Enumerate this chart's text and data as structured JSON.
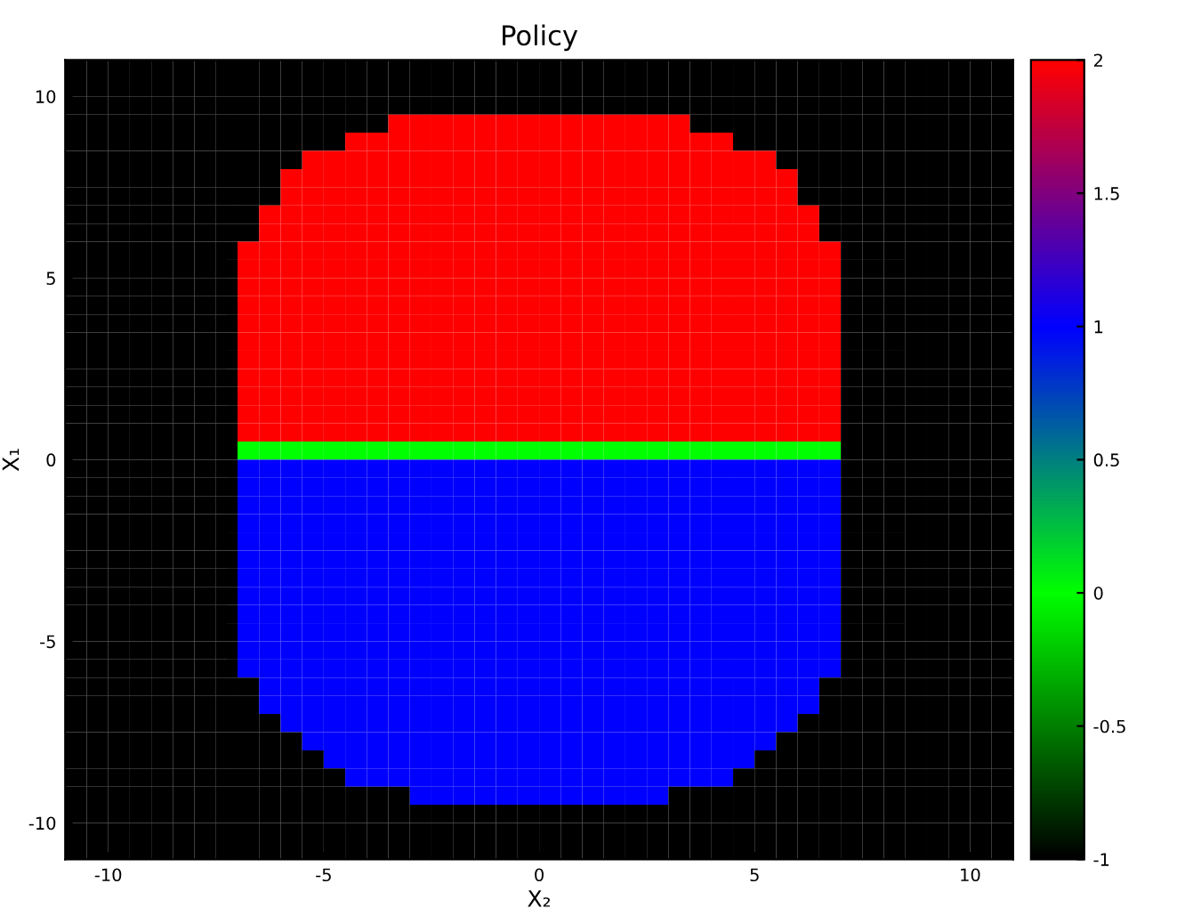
{
  "chart_data": {
    "type": "heatmap",
    "title": "Policy",
    "xlabel": "X₂",
    "ylabel": "X₁",
    "xlim": [
      -11,
      11
    ],
    "ylim": [
      -11,
      11
    ],
    "xticks": [
      -10,
      -5,
      0,
      5,
      10
    ],
    "yticks": [
      -10,
      -5,
      0,
      5,
      10
    ],
    "clim": [
      -1,
      2
    ],
    "cticks": [
      -1,
      -0.5,
      0,
      0.5,
      1,
      1.5,
      2
    ],
    "colors": [
      "#000000",
      "#00ff00",
      "#0000ff",
      "#ff0000"
    ],
    "x": [
      -10.75,
      -10.25,
      -9.75,
      -9.25,
      -8.75,
      -8.25,
      -7.75,
      -7.25,
      -6.75,
      -6.25,
      -5.75,
      -5.25,
      -4.75,
      -4.25,
      -3.75,
      -3.25,
      -2.75,
      -2.25,
      -1.75,
      -1.25,
      -0.75,
      -0.25,
      0.25,
      0.75,
      1.25,
      1.75,
      2.25,
      2.75,
      3.25,
      3.75,
      4.25,
      4.75,
      5.25,
      5.75,
      6.25,
      6.75,
      7.25,
      7.75,
      8.25,
      8.75,
      9.25,
      9.75,
      10.25,
      10.75
    ],
    "y": [
      10.75,
      10.25,
      9.75,
      9.25,
      8.75,
      8.25,
      7.75,
      7.25,
      6.75,
      6.25,
      5.75,
      5.25,
      4.75,
      4.25,
      3.75,
      3.25,
      2.75,
      2.25,
      1.75,
      1.25,
      0.75,
      0.25,
      -0.25,
      -0.75,
      -1.25,
      -1.75,
      -2.25,
      -2.75,
      -3.25,
      -3.75,
      -4.25,
      -4.75,
      -5.25,
      -5.75,
      -6.25,
      -6.75,
      -7.25,
      -7.75,
      -8.25,
      -8.75,
      -9.25,
      -9.75,
      -10.25,
      -10.75
    ],
    "cells": [
      [
        -1,
        -1,
        -1,
        -1,
        -1,
        -1,
        -1,
        -1,
        -1,
        -1,
        -1,
        -1,
        -1,
        -1,
        -1,
        -1,
        -1,
        -1,
        -1,
        -1,
        -1,
        -1,
        -1,
        -1,
        -1,
        -1,
        -1,
        -1,
        -1,
        -1,
        -1,
        -1,
        -1,
        -1,
        -1,
        -1,
        -1,
        -1,
        -1,
        -1,
        -1,
        -1,
        -1,
        -1
      ],
      [
        -1,
        -1,
        -1,
        -1,
        -1,
        -1,
        -1,
        -1,
        -1,
        -1,
        -1,
        -1,
        -1,
        -1,
        -1,
        -1,
        -1,
        -1,
        -1,
        -1,
        -1,
        -1,
        -1,
        -1,
        -1,
        -1,
        -1,
        -1,
        -1,
        -1,
        -1,
        -1,
        -1,
        -1,
        -1,
        -1,
        -1,
        -1,
        -1,
        -1,
        -1,
        -1,
        -1,
        -1
      ],
      [
        -1,
        -1,
        -1,
        -1,
        -1,
        -1,
        -1,
        -1,
        -1,
        -1,
        -1,
        -1,
        -1,
        -1,
        -1,
        -1,
        -1,
        -1,
        -1,
        -1,
        -1,
        -1,
        -1,
        -1,
        -1,
        -1,
        -1,
        -1,
        -1,
        -1,
        -1,
        -1,
        -1,
        -1,
        -1,
        -1,
        -1,
        -1,
        -1,
        -1,
        -1,
        -1,
        -1,
        -1
      ],
      [
        -1,
        -1,
        -1,
        -1,
        -1,
        -1,
        -1,
        -1,
        -1,
        -1,
        -1,
        -1,
        -1,
        -1,
        -1,
        2,
        2,
        2,
        2,
        2,
        2,
        2,
        2,
        2,
        2,
        2,
        2,
        2,
        2,
        -1,
        -1,
        -1,
        -1,
        -1,
        -1,
        -1,
        -1,
        -1,
        -1,
        -1,
        -1,
        -1,
        -1,
        -1
      ],
      [
        -1,
        -1,
        -1,
        -1,
        -1,
        -1,
        -1,
        -1,
        -1,
        -1,
        -1,
        -1,
        -1,
        2,
        2,
        2,
        2,
        2,
        2,
        2,
        2,
        2,
        2,
        2,
        2,
        2,
        2,
        2,
        2,
        2,
        2,
        -1,
        -1,
        -1,
        -1,
        -1,
        -1,
        -1,
        -1,
        -1,
        -1,
        -1,
        -1,
        -1
      ],
      [
        -1,
        -1,
        -1,
        -1,
        -1,
        -1,
        -1,
        -1,
        -1,
        -1,
        -1,
        2,
        2,
        2,
        2,
        2,
        2,
        2,
        2,
        2,
        2,
        2,
        2,
        2,
        2,
        2,
        2,
        2,
        2,
        2,
        2,
        2,
        2,
        -1,
        -1,
        -1,
        -1,
        -1,
        -1,
        -1,
        -1,
        -1,
        -1,
        -1
      ],
      [
        -1,
        -1,
        -1,
        -1,
        -1,
        -1,
        -1,
        -1,
        -1,
        -1,
        2,
        2,
        2,
        2,
        2,
        2,
        2,
        2,
        2,
        2,
        2,
        2,
        2,
        2,
        2,
        2,
        2,
        2,
        2,
        2,
        2,
        2,
        2,
        2,
        -1,
        -1,
        -1,
        -1,
        -1,
        -1,
        -1,
        -1,
        -1,
        -1
      ],
      [
        -1,
        -1,
        -1,
        -1,
        -1,
        -1,
        -1,
        -1,
        -1,
        -1,
        2,
        2,
        2,
        2,
        2,
        2,
        2,
        2,
        2,
        2,
        2,
        2,
        2,
        2,
        2,
        2,
        2,
        2,
        2,
        2,
        2,
        2,
        2,
        2,
        -1,
        -1,
        -1,
        -1,
        -1,
        -1,
        -1,
        -1,
        -1,
        -1
      ],
      [
        -1,
        -1,
        -1,
        -1,
        -1,
        -1,
        -1,
        -1,
        -1,
        2,
        2,
        2,
        2,
        2,
        2,
        2,
        2,
        2,
        2,
        2,
        2,
        2,
        2,
        2,
        2,
        2,
        2,
        2,
        2,
        2,
        2,
        2,
        2,
        2,
        2,
        -1,
        -1,
        -1,
        -1,
        -1,
        -1,
        -1,
        -1,
        -1
      ],
      [
        -1,
        -1,
        -1,
        -1,
        -1,
        -1,
        -1,
        -1,
        -1,
        2,
        2,
        2,
        2,
        2,
        2,
        2,
        2,
        2,
        2,
        2,
        2,
        2,
        2,
        2,
        2,
        2,
        2,
        2,
        2,
        2,
        2,
        2,
        2,
        2,
        2,
        -1,
        -1,
        -1,
        -1,
        -1,
        -1,
        -1,
        -1,
        -1
      ],
      [
        -1,
        -1,
        -1,
        -1,
        -1,
        -1,
        -1,
        -1,
        2,
        2,
        2,
        2,
        2,
        2,
        2,
        2,
        2,
        2,
        2,
        2,
        2,
        2,
        2,
        2,
        2,
        2,
        2,
        2,
        2,
        2,
        2,
        2,
        2,
        2,
        2,
        2,
        -1,
        -1,
        -1,
        -1,
        -1,
        -1,
        -1,
        -1
      ],
      [
        -1,
        -1,
        -1,
        -1,
        -1,
        -1,
        -1,
        -1,
        2,
        2,
        2,
        2,
        2,
        2,
        2,
        2,
        2,
        2,
        2,
        2,
        2,
        2,
        2,
        2,
        2,
        2,
        2,
        2,
        2,
        2,
        2,
        2,
        2,
        2,
        2,
        2,
        -1,
        -1,
        -1,
        -1,
        -1,
        -1,
        -1,
        -1
      ],
      [
        -1,
        -1,
        -1,
        -1,
        -1,
        -1,
        -1,
        -1,
        2,
        2,
        2,
        2,
        2,
        2,
        2,
        2,
        2,
        2,
        2,
        2,
        2,
        2,
        2,
        2,
        2,
        2,
        2,
        2,
        2,
        2,
        2,
        2,
        2,
        2,
        2,
        2,
        -1,
        -1,
        -1,
        -1,
        -1,
        -1,
        -1,
        -1
      ],
      [
        -1,
        -1,
        -1,
        -1,
        -1,
        -1,
        -1,
        -1,
        2,
        2,
        2,
        2,
        2,
        2,
        2,
        2,
        2,
        2,
        2,
        2,
        2,
        2,
        2,
        2,
        2,
        2,
        2,
        2,
        2,
        2,
        2,
        2,
        2,
        2,
        2,
        2,
        -1,
        -1,
        -1,
        -1,
        -1,
        -1,
        -1,
        -1
      ],
      [
        -1,
        -1,
        -1,
        -1,
        -1,
        -1,
        -1,
        -1,
        2,
        2,
        2,
        2,
        2,
        2,
        2,
        2,
        2,
        2,
        2,
        2,
        2,
        2,
        2,
        2,
        2,
        2,
        2,
        2,
        2,
        2,
        2,
        2,
        2,
        2,
        2,
        2,
        -1,
        -1,
        -1,
        -1,
        -1,
        -1,
        -1,
        -1
      ],
      [
        -1,
        -1,
        -1,
        -1,
        -1,
        -1,
        -1,
        -1,
        2,
        2,
        2,
        2,
        2,
        2,
        2,
        2,
        2,
        2,
        2,
        2,
        2,
        2,
        2,
        2,
        2,
        2,
        2,
        2,
        2,
        2,
        2,
        2,
        2,
        2,
        2,
        2,
        -1,
        -1,
        -1,
        -1,
        -1,
        -1,
        -1,
        -1
      ],
      [
        -1,
        -1,
        -1,
        -1,
        -1,
        -1,
        -1,
        -1,
        2,
        2,
        2,
        2,
        2,
        2,
        2,
        2,
        2,
        2,
        2,
        2,
        2,
        2,
        2,
        2,
        2,
        2,
        2,
        2,
        2,
        2,
        2,
        2,
        2,
        2,
        2,
        2,
        -1,
        -1,
        -1,
        -1,
        -1,
        -1,
        -1,
        -1
      ],
      [
        -1,
        -1,
        -1,
        -1,
        -1,
        -1,
        -1,
        -1,
        2,
        2,
        2,
        2,
        2,
        2,
        2,
        2,
        2,
        2,
        2,
        2,
        2,
        2,
        2,
        2,
        2,
        2,
        2,
        2,
        2,
        2,
        2,
        2,
        2,
        2,
        2,
        2,
        -1,
        -1,
        -1,
        -1,
        -1,
        -1,
        -1,
        -1
      ],
      [
        -1,
        -1,
        -1,
        -1,
        -1,
        -1,
        -1,
        -1,
        2,
        2,
        2,
        2,
        2,
        2,
        2,
        2,
        2,
        2,
        2,
        2,
        2,
        2,
        2,
        2,
        2,
        2,
        2,
        2,
        2,
        2,
        2,
        2,
        2,
        2,
        2,
        2,
        -1,
        -1,
        -1,
        -1,
        -1,
        -1,
        -1,
        -1
      ],
      [
        -1,
        -1,
        -1,
        -1,
        -1,
        -1,
        -1,
        -1,
        2,
        2,
        2,
        2,
        2,
        2,
        2,
        2,
        2,
        2,
        2,
        2,
        2,
        2,
        2,
        2,
        2,
        2,
        2,
        2,
        2,
        2,
        2,
        2,
        2,
        2,
        2,
        2,
        -1,
        -1,
        -1,
        -1,
        -1,
        -1,
        -1,
        -1
      ],
      [
        -1,
        -1,
        -1,
        -1,
        -1,
        -1,
        -1,
        -1,
        2,
        2,
        2,
        2,
        2,
        2,
        2,
        2,
        2,
        2,
        2,
        2,
        2,
        2,
        2,
        2,
        2,
        2,
        2,
        2,
        2,
        2,
        2,
        2,
        2,
        2,
        2,
        2,
        -1,
        -1,
        -1,
        -1,
        -1,
        -1,
        -1,
        -1
      ],
      [
        -1,
        -1,
        -1,
        -1,
        -1,
        -1,
        -1,
        -1,
        0,
        0,
        0,
        0,
        0,
        0,
        0,
        0,
        0,
        0,
        0,
        0,
        0,
        0,
        0,
        0,
        0,
        0,
        0,
        0,
        0,
        0,
        0,
        0,
        0,
        0,
        0,
        0,
        -1,
        -1,
        -1,
        -1,
        -1,
        -1,
        -1,
        -1
      ],
      [
        -1,
        -1,
        -1,
        -1,
        -1,
        -1,
        -1,
        -1,
        1,
        1,
        1,
        1,
        1,
        1,
        1,
        1,
        1,
        1,
        1,
        1,
        1,
        1,
        1,
        1,
        1,
        1,
        1,
        1,
        1,
        1,
        1,
        1,
        1,
        1,
        1,
        1,
        -1,
        -1,
        -1,
        -1,
        -1,
        -1,
        -1,
        -1
      ],
      [
        -1,
        -1,
        -1,
        -1,
        -1,
        -1,
        -1,
        -1,
        1,
        1,
        1,
        1,
        1,
        1,
        1,
        1,
        1,
        1,
        1,
        1,
        1,
        1,
        1,
        1,
        1,
        1,
        1,
        1,
        1,
        1,
        1,
        1,
        1,
        1,
        1,
        1,
        -1,
        -1,
        -1,
        -1,
        -1,
        -1,
        -1,
        -1
      ],
      [
        -1,
        -1,
        -1,
        -1,
        -1,
        -1,
        -1,
        -1,
        1,
        1,
        1,
        1,
        1,
        1,
        1,
        1,
        1,
        1,
        1,
        1,
        1,
        1,
        1,
        1,
        1,
        1,
        1,
        1,
        1,
        1,
        1,
        1,
        1,
        1,
        1,
        1,
        -1,
        -1,
        -1,
        -1,
        -1,
        -1,
        -1,
        -1
      ],
      [
        -1,
        -1,
        -1,
        -1,
        -1,
        -1,
        -1,
        -1,
        1,
        1,
        1,
        1,
        1,
        1,
        1,
        1,
        1,
        1,
        1,
        1,
        1,
        1,
        1,
        1,
        1,
        1,
        1,
        1,
        1,
        1,
        1,
        1,
        1,
        1,
        1,
        1,
        -1,
        -1,
        -1,
        -1,
        -1,
        -1,
        -1,
        -1
      ],
      [
        -1,
        -1,
        -1,
        -1,
        -1,
        -1,
        -1,
        -1,
        1,
        1,
        1,
        1,
        1,
        1,
        1,
        1,
        1,
        1,
        1,
        1,
        1,
        1,
        1,
        1,
        1,
        1,
        1,
        1,
        1,
        1,
        1,
        1,
        1,
        1,
        1,
        1,
        -1,
        -1,
        -1,
        -1,
        -1,
        -1,
        -1,
        -1
      ],
      [
        -1,
        -1,
        -1,
        -1,
        -1,
        -1,
        -1,
        -1,
        1,
        1,
        1,
        1,
        1,
        1,
        1,
        1,
        1,
        1,
        1,
        1,
        1,
        1,
        1,
        1,
        1,
        1,
        1,
        1,
        1,
        1,
        1,
        1,
        1,
        1,
        1,
        1,
        -1,
        -1,
        -1,
        -1,
        -1,
        -1,
        -1,
        -1
      ],
      [
        -1,
        -1,
        -1,
        -1,
        -1,
        -1,
        -1,
        -1,
        1,
        1,
        1,
        1,
        1,
        1,
        1,
        1,
        1,
        1,
        1,
        1,
        1,
        1,
        1,
        1,
        1,
        1,
        1,
        1,
        1,
        1,
        1,
        1,
        1,
        1,
        1,
        1,
        -1,
        -1,
        -1,
        -1,
        -1,
        -1,
        -1,
        -1
      ],
      [
        -1,
        -1,
        -1,
        -1,
        -1,
        -1,
        -1,
        -1,
        1,
        1,
        1,
        1,
        1,
        1,
        1,
        1,
        1,
        1,
        1,
        1,
        1,
        1,
        1,
        1,
        1,
        1,
        1,
        1,
        1,
        1,
        1,
        1,
        1,
        1,
        1,
        1,
        -1,
        -1,
        -1,
        -1,
        -1,
        -1,
        -1,
        -1
      ],
      [
        -1,
        -1,
        -1,
        -1,
        -1,
        -1,
        -1,
        -1,
        1,
        1,
        1,
        1,
        1,
        1,
        1,
        1,
        1,
        1,
        1,
        1,
        1,
        1,
        1,
        1,
        1,
        1,
        1,
        1,
        1,
        1,
        1,
        1,
        1,
        1,
        1,
        1,
        -1,
        -1,
        -1,
        -1,
        -1,
        -1,
        -1,
        -1
      ],
      [
        -1,
        -1,
        -1,
        -1,
        -1,
        -1,
        -1,
        -1,
        1,
        1,
        1,
        1,
        1,
        1,
        1,
        1,
        1,
        1,
        1,
        1,
        1,
        1,
        1,
        1,
        1,
        1,
        1,
        1,
        1,
        1,
        1,
        1,
        1,
        1,
        1,
        1,
        -1,
        -1,
        -1,
        -1,
        -1,
        -1,
        -1,
        -1
      ],
      [
        -1,
        -1,
        -1,
        -1,
        -1,
        -1,
        -1,
        -1,
        1,
        1,
        1,
        1,
        1,
        1,
        1,
        1,
        1,
        1,
        1,
        1,
        1,
        1,
        1,
        1,
        1,
        1,
        1,
        1,
        1,
        1,
        1,
        1,
        1,
        1,
        1,
        1,
        -1,
        -1,
        -1,
        -1,
        -1,
        -1,
        -1,
        -1
      ],
      [
        -1,
        -1,
        -1,
        -1,
        -1,
        -1,
        -1,
        -1,
        1,
        1,
        1,
        1,
        1,
        1,
        1,
        1,
        1,
        1,
        1,
        1,
        1,
        1,
        1,
        1,
        1,
        1,
        1,
        1,
        1,
        1,
        1,
        1,
        1,
        1,
        1,
        1,
        -1,
        -1,
        -1,
        -1,
        -1,
        -1,
        -1,
        -1
      ],
      [
        -1,
        -1,
        -1,
        -1,
        -1,
        -1,
        -1,
        -1,
        -1,
        1,
        1,
        1,
        1,
        1,
        1,
        1,
        1,
        1,
        1,
        1,
        1,
        1,
        1,
        1,
        1,
        1,
        1,
        1,
        1,
        1,
        1,
        1,
        1,
        1,
        1,
        -1,
        -1,
        -1,
        -1,
        -1,
        -1,
        -1,
        -1,
        -1
      ],
      [
        -1,
        -1,
        -1,
        -1,
        -1,
        -1,
        -1,
        -1,
        -1,
        1,
        1,
        1,
        1,
        1,
        1,
        1,
        1,
        1,
        1,
        1,
        1,
        1,
        1,
        1,
        1,
        1,
        1,
        1,
        1,
        1,
        1,
        1,
        1,
        1,
        1,
        -1,
        -1,
        -1,
        -1,
        -1,
        -1,
        -1,
        -1,
        -1
      ],
      [
        -1,
        -1,
        -1,
        -1,
        -1,
        -1,
        -1,
        -1,
        -1,
        -1,
        1,
        1,
        1,
        1,
        1,
        1,
        1,
        1,
        1,
        1,
        1,
        1,
        1,
        1,
        1,
        1,
        1,
        1,
        1,
        1,
        1,
        1,
        1,
        1,
        -1,
        -1,
        -1,
        -1,
        -1,
        -1,
        -1,
        -1,
        -1,
        -1
      ],
      [
        -1,
        -1,
        -1,
        -1,
        -1,
        -1,
        -1,
        -1,
        -1,
        -1,
        -1,
        1,
        1,
        1,
        1,
        1,
        1,
        1,
        1,
        1,
        1,
        1,
        1,
        1,
        1,
        1,
        1,
        1,
        1,
        1,
        1,
        1,
        1,
        -1,
        -1,
        -1,
        -1,
        -1,
        -1,
        -1,
        -1,
        -1,
        -1,
        -1
      ],
      [
        -1,
        -1,
        -1,
        -1,
        -1,
        -1,
        -1,
        -1,
        -1,
        -1,
        -1,
        -1,
        1,
        1,
        1,
        1,
        1,
        1,
        1,
        1,
        1,
        1,
        1,
        1,
        1,
        1,
        1,
        1,
        1,
        1,
        1,
        1,
        -1,
        -1,
        -1,
        -1,
        -1,
        -1,
        -1,
        -1,
        -1,
        -1,
        -1,
        -1
      ],
      [
        -1,
        -1,
        -1,
        -1,
        -1,
        -1,
        -1,
        -1,
        -1,
        -1,
        -1,
        -1,
        -1,
        1,
        1,
        1,
        1,
        1,
        1,
        1,
        1,
        1,
        1,
        1,
        1,
        1,
        1,
        1,
        1,
        1,
        1,
        -1,
        -1,
        -1,
        -1,
        -1,
        -1,
        -1,
        -1,
        -1,
        -1,
        -1,
        -1,
        -1
      ],
      [
        -1,
        -1,
        -1,
        -1,
        -1,
        -1,
        -1,
        -1,
        -1,
        -1,
        -1,
        -1,
        -1,
        -1,
        -1,
        -1,
        1,
        1,
        1,
        1,
        1,
        1,
        1,
        1,
        1,
        1,
        1,
        1,
        -1,
        -1,
        -1,
        -1,
        -1,
        -1,
        -1,
        -1,
        -1,
        -1,
        -1,
        -1,
        -1,
        -1,
        -1,
        -1
      ],
      [
        -1,
        -1,
        -1,
        -1,
        -1,
        -1,
        -1,
        -1,
        -1,
        -1,
        -1,
        -1,
        -1,
        -1,
        -1,
        -1,
        -1,
        -1,
        -1,
        -1,
        -1,
        -1,
        -1,
        -1,
        -1,
        -1,
        -1,
        -1,
        -1,
        -1,
        -1,
        -1,
        -1,
        -1,
        -1,
        -1,
        -1,
        -1,
        -1,
        -1,
        -1,
        -1,
        -1,
        -1
      ],
      [
        -1,
        -1,
        -1,
        -1,
        -1,
        -1,
        -1,
        -1,
        -1,
        -1,
        -1,
        -1,
        -1,
        -1,
        -1,
        -1,
        -1,
        -1,
        -1,
        -1,
        -1,
        -1,
        -1,
        -1,
        -1,
        -1,
        -1,
        -1,
        -1,
        -1,
        -1,
        -1,
        -1,
        -1,
        -1,
        -1,
        -1,
        -1,
        -1,
        -1,
        -1,
        -1,
        -1,
        -1
      ],
      [
        -1,
        -1,
        -1,
        -1,
        -1,
        -1,
        -1,
        -1,
        -1,
        -1,
        -1,
        -1,
        -1,
        -1,
        -1,
        -1,
        -1,
        -1,
        -1,
        -1,
        -1,
        -1,
        -1,
        -1,
        -1,
        -1,
        -1,
        -1,
        -1,
        -1,
        -1,
        -1,
        -1,
        -1,
        -1,
        -1,
        -1,
        -1,
        -1,
        -1,
        -1,
        -1,
        -1,
        -1
      ]
    ]
  }
}
